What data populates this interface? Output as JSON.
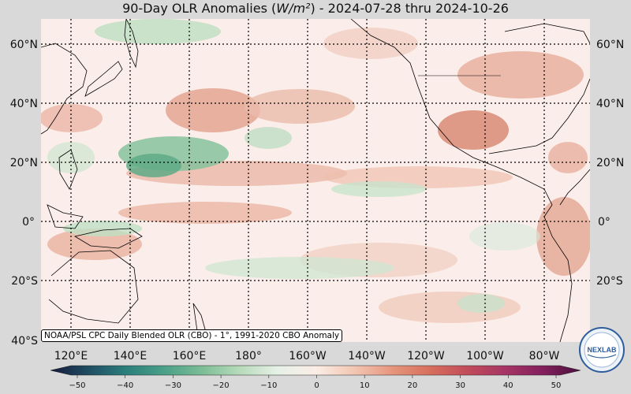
{
  "title": {
    "prefix": "90-Day OLR Anomalies (",
    "unit": "W/m²",
    "suffix": ") - 2024-07-28 thru 2024-10-26"
  },
  "map": {
    "lat_labels": [
      "60°N",
      "40°N",
      "20°N",
      "0°",
      "20°S",
      "40°S"
    ],
    "lon_labels": [
      "120°E",
      "140°E",
      "160°E",
      "180°",
      "160°W",
      "140°W",
      "120°W",
      "100°W",
      "80°W"
    ],
    "caption": "NOAA/PSL CPC Daily Blended OLR (CBO) - 1°, 1991-2020 CBO Anomaly",
    "logo_text": "NEXLAB"
  },
  "colorbar": {
    "ticks": [
      "−50",
      "−40",
      "−30",
      "−20",
      "−10",
      "0",
      "10",
      "20",
      "30",
      "40",
      "50"
    ],
    "colors": [
      "#151b3a",
      "#1f4d63",
      "#2b7f7c",
      "#4aa088",
      "#7cbd96",
      "#b7dbbb",
      "#e6f1e6",
      "#fbeee6",
      "#f2c7b4",
      "#e6977e",
      "#d7705e",
      "#c24c5a",
      "#a63565",
      "#83205e",
      "#4c0f3c"
    ]
  }
}
